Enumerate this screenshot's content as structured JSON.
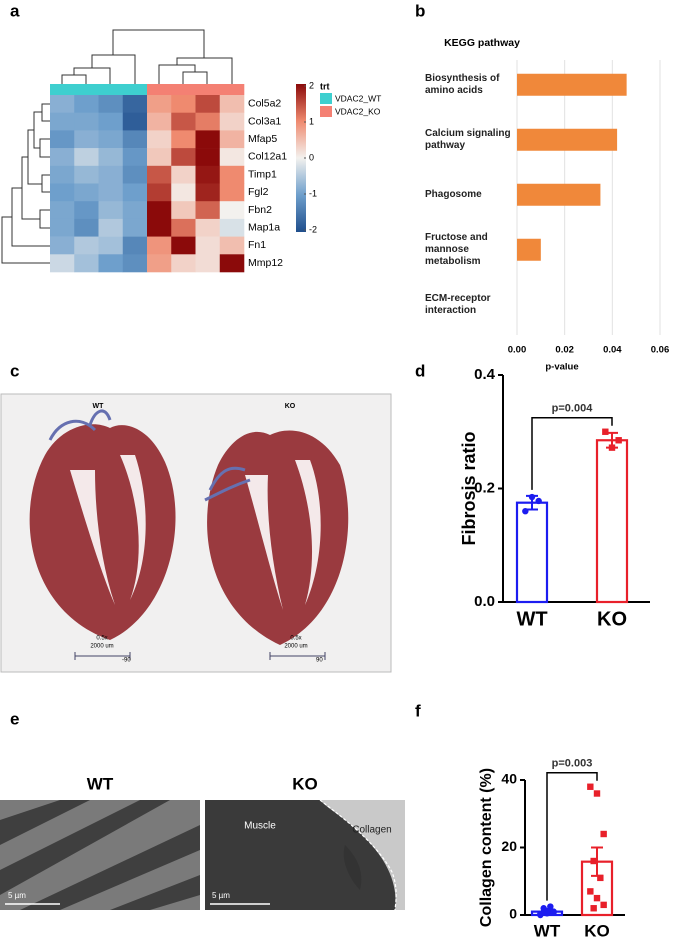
{
  "panel_labels": [
    "a",
    "b",
    "c",
    "d",
    "e",
    "f"
  ],
  "chart_data": [
    {
      "type": "heatmap",
      "rows": [
        "Col5a2",
        "Col3a1",
        "Mfap5",
        "Col12a1",
        "Timp1",
        "Fgl2",
        "Fbn2",
        "Map1a",
        "Fn1",
        "Mmp12"
      ],
      "values": [
        [
          -0.8,
          -1.0,
          -1.2,
          -1.7,
          0.8,
          1.0,
          1.5,
          0.5
        ],
        [
          -0.9,
          -0.9,
          -1.0,
          -1.8,
          0.6,
          1.4,
          1.1,
          0.3
        ],
        [
          -1.1,
          -0.8,
          -0.9,
          -1.3,
          0.3,
          1.0,
          2.0,
          0.6
        ],
        [
          -0.8,
          -0.4,
          -0.7,
          -1.1,
          0.4,
          1.5,
          2.0,
          0.1
        ],
        [
          -0.9,
          -0.7,
          -0.8,
          -1.2,
          1.4,
          0.3,
          1.9,
          1.0
        ],
        [
          -1.0,
          -0.9,
          -0.8,
          -1.0,
          1.6,
          0.1,
          1.8,
          1.0
        ],
        [
          -0.9,
          -1.1,
          -0.7,
          -0.9,
          2.0,
          0.4,
          1.3,
          0.0
        ],
        [
          -0.9,
          -1.2,
          -0.5,
          -0.9,
          2.0,
          1.2,
          0.3,
          -0.2
        ],
        [
          -0.8,
          -0.5,
          -0.6,
          -1.3,
          0.9,
          2.0,
          0.2,
          0.5
        ],
        [
          -0.3,
          -0.6,
          -1.0,
          -1.2,
          0.8,
          0.3,
          0.2,
          2.0
        ]
      ],
      "annotation_title": "trt",
      "column_groups": [
        "VDAC2_WT",
        "VDAC2_WT",
        "VDAC2_WT",
        "VDAC2_WT",
        "VDAC2_KO",
        "VDAC2_KO",
        "VDAC2_KO",
        "VDAC2_KO"
      ],
      "groups": [
        {
          "name": "VDAC2_WT",
          "color": "#3ecfcf"
        },
        {
          "name": "VDAC2_KO",
          "color": "#f48073"
        }
      ],
      "colorscale": [
        [
          -2,
          "#1f4e8c"
        ],
        [
          -1,
          "#6e9fcc"
        ],
        [
          0,
          "#f3f1ee"
        ],
        [
          1,
          "#ef8a6f"
        ],
        [
          2,
          "#8b0a0a"
        ]
      ],
      "zticks": [
        2,
        1,
        0,
        -1,
        -2
      ]
    },
    {
      "type": "barh",
      "title": "KEGG pathway",
      "categories": [
        "Biosynthesis of amino acids",
        "Calcium signaling pathway",
        "Phagosome",
        "Fructose and mannose metabolism",
        "ECM-receptor interaction"
      ],
      "values": [
        0.046,
        0.042,
        0.035,
        0.01,
        0
      ],
      "color": "#f0883a",
      "xlim": [
        0,
        0.06
      ],
      "xticks": [
        {
          "value": 0,
          "label": "0.00"
        },
        {
          "value": 0.02,
          "label": "0.02"
        },
        {
          "value": 0.04,
          "label": "0.04"
        },
        {
          "value": 0.06,
          "label": "0.06"
        }
      ],
      "xlabel": "p-value",
      "grid": true
    },
    {
      "type": "bar",
      "ylabel": "Fibrosis ratio",
      "categories": [
        "WT",
        "KO"
      ],
      "values": [
        0.175,
        0.285
      ],
      "errors": [
        0.012,
        0.013
      ],
      "points": [
        [
          0.16,
          0.185,
          0.178
        ],
        [
          0.3,
          0.272,
          0.285
        ]
      ],
      "colors": [
        "#1c1cf0",
        "#e8202a"
      ],
      "ylim": [
        0,
        0.4
      ],
      "yticks": [
        {
          "value": 0,
          "label": "0.0"
        },
        {
          "value": 0.2,
          "label": "0.2"
        },
        {
          "value": 0.4,
          "label": "0.4"
        }
      ],
      "annotation": "p=0.004"
    },
    {
      "type": "bar",
      "ylabel": "Collagen content (%)",
      "categories": [
        "WT",
        "KO"
      ],
      "values": [
        1.0,
        15.8
      ],
      "errors": [
        0.4,
        4.2
      ],
      "points": [
        [
          0,
          0.5,
          1,
          2,
          2.5,
          0.3,
          1.2,
          0.8,
          0.7
        ],
        [
          38,
          36,
          24,
          16,
          11,
          7,
          5,
          3,
          2
        ]
      ],
      "colors": [
        "#1c1cf0",
        "#e8202a"
      ],
      "ylim": [
        0,
        40
      ],
      "yticks": [
        0,
        20,
        40
      ],
      "annotation": "p=0.003"
    }
  ],
  "images": {
    "c": {
      "labels": [
        "WT",
        "KO"
      ],
      "magnification": "0.5x",
      "scale": "2000 um",
      "angles": [
        "-90",
        "90"
      ]
    },
    "e": {
      "labels": [
        "WT",
        "KO"
      ],
      "regions": [
        "Muscle",
        "Collagen"
      ],
      "scale": "5 µm"
    }
  }
}
